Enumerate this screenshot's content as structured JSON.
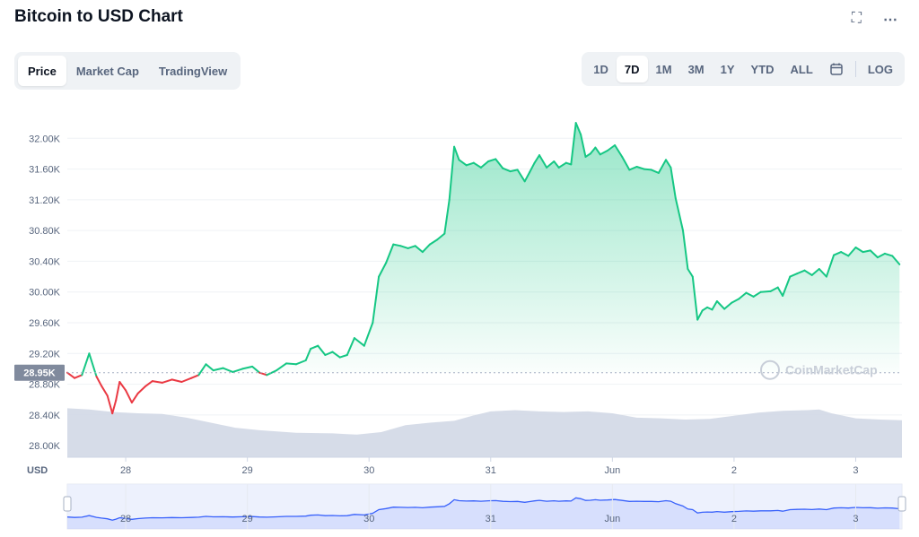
{
  "header": {
    "title": "Bitcoin to USD Chart",
    "expand_icon": "expand-icon",
    "more_icon": "more-icon"
  },
  "view_tabs": [
    {
      "label": "Price",
      "active": true
    },
    {
      "label": "Market Cap",
      "active": false
    },
    {
      "label": "TradingView",
      "active": false
    }
  ],
  "range_tabs": [
    {
      "label": "1D",
      "active": false
    },
    {
      "label": "7D",
      "active": true
    },
    {
      "label": "1M",
      "active": false
    },
    {
      "label": "3M",
      "active": false
    },
    {
      "label": "1Y",
      "active": false
    },
    {
      "label": "YTD",
      "active": false
    },
    {
      "label": "ALL",
      "active": false
    }
  ],
  "calendar_icon": "calendar-icon",
  "log_label": "LOG",
  "watermark": "CoinMarketCap",
  "chart_data": {
    "type": "line",
    "title": "",
    "ylabel": "",
    "xlabel": "",
    "currency_label": "USD",
    "ylim": [
      27850,
      32400
    ],
    "yticks": [
      "32.00K",
      "31.60K",
      "31.20K",
      "30.80K",
      "30.40K",
      "30.00K",
      "29.60K",
      "29.20K",
      "28.80K",
      "28.40K",
      "28.00K"
    ],
    "ytick_values": [
      32000,
      31600,
      31200,
      30800,
      30400,
      30000,
      29600,
      29200,
      28800,
      28400,
      28000
    ],
    "xticks": [
      "28",
      "29",
      "30",
      "31",
      "Jun",
      "2",
      "3"
    ],
    "xtick_values": [
      1,
      2,
      3,
      4,
      5,
      6,
      7
    ],
    "xlim": [
      0.52,
      7.38
    ],
    "reference_price": 28950,
    "reference_label": "28.95K",
    "colors": {
      "up": "#16c784",
      "down": "#ea3943",
      "fill": "#16c784",
      "volume": "#cfd6e4",
      "navigator": "#3861fb"
    },
    "series": [
      {
        "values": [
          [
            0.52,
            28950
          ],
          [
            0.58,
            28880
          ],
          [
            0.64,
            28920
          ],
          [
            0.7,
            29200
          ],
          [
            0.76,
            28900
          ],
          [
            0.8,
            28780
          ],
          [
            0.85,
            28650
          ],
          [
            0.89,
            28420
          ],
          [
            0.92,
            28590
          ],
          [
            0.95,
            28830
          ],
          [
            1.0,
            28720
          ],
          [
            1.05,
            28560
          ],
          [
            1.1,
            28680
          ],
          [
            1.16,
            28770
          ],
          [
            1.22,
            28840
          ],
          [
            1.3,
            28820
          ],
          [
            1.38,
            28860
          ],
          [
            1.46,
            28830
          ],
          [
            1.54,
            28880
          ],
          [
            1.6,
            28920
          ],
          [
            1.66,
            29060
          ],
          [
            1.72,
            28980
          ],
          [
            1.8,
            29010
          ],
          [
            1.88,
            28960
          ],
          [
            1.96,
            29000
          ],
          [
            2.04,
            29030
          ],
          [
            2.1,
            28950
          ],
          [
            2.16,
            28920
          ],
          [
            2.24,
            28980
          ],
          [
            2.32,
            29070
          ],
          [
            2.4,
            29060
          ],
          [
            2.48,
            29110
          ],
          [
            2.52,
            29260
          ],
          [
            2.58,
            29300
          ],
          [
            2.64,
            29180
          ],
          [
            2.7,
            29220
          ],
          [
            2.76,
            29150
          ],
          [
            2.82,
            29180
          ],
          [
            2.88,
            29400
          ],
          [
            2.96,
            29300
          ],
          [
            3.03,
            29600
          ],
          [
            3.08,
            30200
          ],
          [
            3.14,
            30380
          ],
          [
            3.2,
            30620
          ],
          [
            3.26,
            30600
          ],
          [
            3.32,
            30570
          ],
          [
            3.38,
            30600
          ],
          [
            3.44,
            30520
          ],
          [
            3.5,
            30620
          ],
          [
            3.56,
            30680
          ],
          [
            3.62,
            30760
          ],
          [
            3.66,
            31200
          ],
          [
            3.7,
            31890
          ],
          [
            3.74,
            31720
          ],
          [
            3.8,
            31650
          ],
          [
            3.86,
            31680
          ],
          [
            3.92,
            31620
          ],
          [
            3.98,
            31700
          ],
          [
            4.04,
            31730
          ],
          [
            4.1,
            31610
          ],
          [
            4.16,
            31570
          ],
          [
            4.22,
            31590
          ],
          [
            4.28,
            31440
          ],
          [
            4.32,
            31560
          ],
          [
            4.36,
            31680
          ],
          [
            4.4,
            31780
          ],
          [
            4.46,
            31620
          ],
          [
            4.52,
            31700
          ],
          [
            4.56,
            31620
          ],
          [
            4.62,
            31680
          ],
          [
            4.66,
            31660
          ],
          [
            4.7,
            32200
          ],
          [
            4.74,
            32050
          ],
          [
            4.78,
            31760
          ],
          [
            4.82,
            31800
          ],
          [
            4.86,
            31880
          ],
          [
            4.9,
            31790
          ],
          [
            4.96,
            31840
          ],
          [
            5.02,
            31910
          ],
          [
            5.08,
            31760
          ],
          [
            5.14,
            31590
          ],
          [
            5.2,
            31630
          ],
          [
            5.26,
            31600
          ],
          [
            5.32,
            31590
          ],
          [
            5.38,
            31550
          ],
          [
            5.44,
            31720
          ],
          [
            5.48,
            31620
          ],
          [
            5.52,
            31220
          ],
          [
            5.58,
            30800
          ],
          [
            5.62,
            30300
          ],
          [
            5.66,
            30200
          ],
          [
            5.7,
            29640
          ],
          [
            5.74,
            29760
          ],
          [
            5.78,
            29800
          ],
          [
            5.82,
            29770
          ],
          [
            5.86,
            29880
          ],
          [
            5.92,
            29780
          ],
          [
            5.98,
            29860
          ],
          [
            6.04,
            29910
          ],
          [
            6.1,
            29990
          ],
          [
            6.16,
            29940
          ],
          [
            6.22,
            30000
          ],
          [
            6.3,
            30010
          ],
          [
            6.36,
            30060
          ],
          [
            6.4,
            29950
          ],
          [
            6.46,
            30200
          ],
          [
            6.52,
            30240
          ],
          [
            6.58,
            30280
          ],
          [
            6.64,
            30220
          ],
          [
            6.7,
            30300
          ],
          [
            6.76,
            30200
          ],
          [
            6.82,
            30480
          ],
          [
            6.88,
            30520
          ],
          [
            6.94,
            30470
          ],
          [
            7.0,
            30580
          ],
          [
            7.06,
            30520
          ],
          [
            7.12,
            30540
          ],
          [
            7.18,
            30450
          ],
          [
            7.24,
            30500
          ],
          [
            7.3,
            30470
          ],
          [
            7.36,
            30360
          ]
        ]
      }
    ],
    "volume": [
      [
        0.52,
        0.78
      ],
      [
        0.7,
        0.76
      ],
      [
        0.9,
        0.72
      ],
      [
        1.1,
        0.7
      ],
      [
        1.3,
        0.69
      ],
      [
        1.5,
        0.63
      ],
      [
        1.7,
        0.55
      ],
      [
        1.9,
        0.47
      ],
      [
        2.1,
        0.43
      ],
      [
        2.4,
        0.39
      ],
      [
        2.7,
        0.38
      ],
      [
        2.9,
        0.36
      ],
      [
        3.1,
        0.4
      ],
      [
        3.3,
        0.51
      ],
      [
        3.5,
        0.55
      ],
      [
        3.7,
        0.58
      ],
      [
        3.85,
        0.66
      ],
      [
        4.0,
        0.73
      ],
      [
        4.2,
        0.75
      ],
      [
        4.4,
        0.73
      ],
      [
        4.6,
        0.72
      ],
      [
        4.8,
        0.73
      ],
      [
        5.0,
        0.7
      ],
      [
        5.2,
        0.63
      ],
      [
        5.4,
        0.62
      ],
      [
        5.6,
        0.6
      ],
      [
        5.8,
        0.61
      ],
      [
        6.0,
        0.66
      ],
      [
        6.2,
        0.71
      ],
      [
        6.4,
        0.74
      ],
      [
        6.6,
        0.75
      ],
      [
        6.7,
        0.76
      ],
      [
        6.8,
        0.7
      ],
      [
        7.0,
        0.62
      ],
      [
        7.2,
        0.6
      ],
      [
        7.38,
        0.59
      ]
    ],
    "navigator": {
      "xticks": [
        "28",
        "29",
        "30",
        "31",
        "Jun",
        "2",
        "3"
      ]
    }
  }
}
